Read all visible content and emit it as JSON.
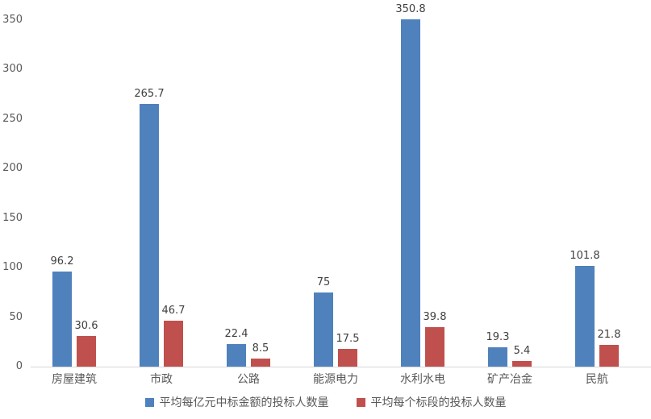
{
  "chart_data": {
    "type": "bar",
    "title": "",
    "xlabel": "",
    "ylabel": "",
    "categories": [
      "房屋建筑",
      "市政",
      "公路",
      "能源电力",
      "水利水电",
      "矿产冶金",
      "民航"
    ],
    "series": [
      {
        "name": "平均每亿元中标金额的投标人数量",
        "color": "#4F81BD",
        "values": [
          96.2,
          265.7,
          22.4,
          75,
          350.8,
          19.3,
          101.8
        ]
      },
      {
        "name": "平均每个标段的投标人数量",
        "color": "#C0504D",
        "values": [
          30.6,
          46.7,
          8.5,
          17.5,
          39.8,
          5.4,
          21.8
        ]
      }
    ],
    "yticks": [
      0,
      50,
      100,
      150,
      200,
      250,
      300,
      350
    ],
    "ylim": [
      0,
      366
    ],
    "grid": false,
    "legend_position": "bottom"
  },
  "colors": {
    "background": "#FFFFFF",
    "axis_line": "#D6D6D6",
    "tick_text": "#595959",
    "category_text": "#595959",
    "data_label_text": "#404040",
    "legend_text": "#595959"
  }
}
